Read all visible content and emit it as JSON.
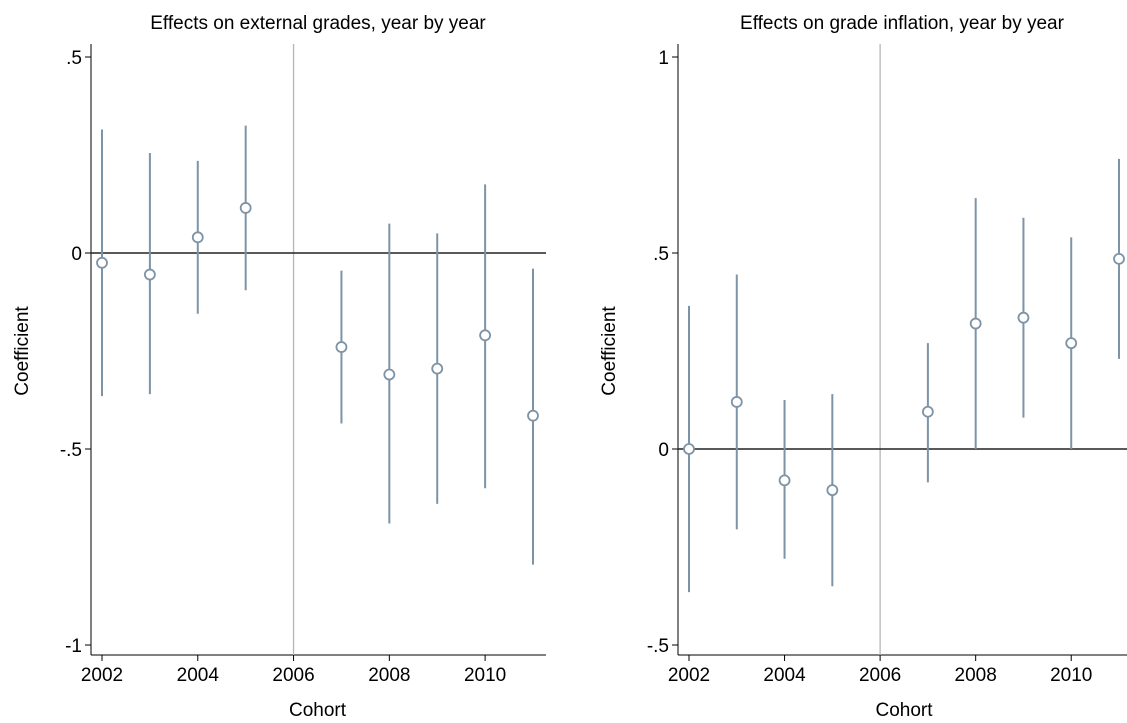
{
  "colors": {
    "marker": "#7d93a6",
    "zero_line": "#222222",
    "ref_line": "#b5b5b5",
    "axis": "#000000"
  },
  "chart_data": [
    {
      "type": "scatter",
      "title": "Effects on external grades, year by year",
      "xlabel": "Cohort",
      "ylabel": "Coefficient",
      "xlim": [
        2002,
        2011
      ],
      "ylim": [
        -1,
        0.5
      ],
      "x_ticks": [
        2002,
        2004,
        2006,
        2008,
        2010
      ],
      "x_tick_labels": [
        "2002",
        "2004",
        "2006",
        "2008",
        "2010"
      ],
      "y_ticks": [
        -1,
        -0.5,
        0,
        0.5
      ],
      "y_tick_labels": [
        "-1",
        "-.5",
        "0",
        ".5"
      ],
      "reference_lines": {
        "horizontal": 0,
        "vertical": 2006
      },
      "grid": false,
      "points": [
        {
          "x": 2002,
          "y": -0.025,
          "ci_low": -0.365,
          "ci_high": 0.315
        },
        {
          "x": 2003,
          "y": -0.055,
          "ci_low": -0.36,
          "ci_high": 0.255
        },
        {
          "x": 2004,
          "y": 0.04,
          "ci_low": -0.155,
          "ci_high": 0.235
        },
        {
          "x": 2005,
          "y": 0.115,
          "ci_low": -0.095,
          "ci_high": 0.325
        },
        {
          "x": 2007,
          "y": -0.24,
          "ci_low": -0.435,
          "ci_high": -0.045
        },
        {
          "x": 2008,
          "y": -0.31,
          "ci_low": -0.69,
          "ci_high": 0.075
        },
        {
          "x": 2009,
          "y": -0.295,
          "ci_low": -0.64,
          "ci_high": 0.05
        },
        {
          "x": 2010,
          "y": -0.21,
          "ci_low": -0.6,
          "ci_high": 0.175
        },
        {
          "x": 2011,
          "y": -0.415,
          "ci_low": -0.795,
          "ci_high": -0.04
        }
      ]
    },
    {
      "type": "scatter",
      "title": "Effects on grade inflation, year by year",
      "xlabel": "Cohort",
      "ylabel": "Coefficient",
      "xlim": [
        2002,
        2011
      ],
      "ylim": [
        -0.5,
        1
      ],
      "x_ticks": [
        2002,
        2004,
        2006,
        2008,
        2010
      ],
      "x_tick_labels": [
        "2002",
        "2004",
        "2006",
        "2008",
        "2010"
      ],
      "y_ticks": [
        -0.5,
        0,
        0.5,
        1
      ],
      "y_tick_labels": [
        "-.5",
        "0",
        ".5",
        "1"
      ],
      "reference_lines": {
        "horizontal": 0,
        "vertical": 2006
      },
      "grid": false,
      "points": [
        {
          "x": 2002,
          "y": 0.0,
          "ci_low": -0.365,
          "ci_high": 0.365
        },
        {
          "x": 2003,
          "y": 0.12,
          "ci_low": -0.205,
          "ci_high": 0.445
        },
        {
          "x": 2004,
          "y": -0.08,
          "ci_low": -0.28,
          "ci_high": 0.125
        },
        {
          "x": 2005,
          "y": -0.105,
          "ci_low": -0.35,
          "ci_high": 0.14
        },
        {
          "x": 2007,
          "y": 0.095,
          "ci_low": -0.085,
          "ci_high": 0.27
        },
        {
          "x": 2008,
          "y": 0.32,
          "ci_low": 0.0,
          "ci_high": 0.64
        },
        {
          "x": 2009,
          "y": 0.335,
          "ci_low": 0.08,
          "ci_high": 0.59
        },
        {
          "x": 2010,
          "y": 0.27,
          "ci_low": 0.0,
          "ci_high": 0.54
        },
        {
          "x": 2011,
          "y": 0.485,
          "ci_low": 0.23,
          "ci_high": 0.74
        }
      ]
    }
  ]
}
